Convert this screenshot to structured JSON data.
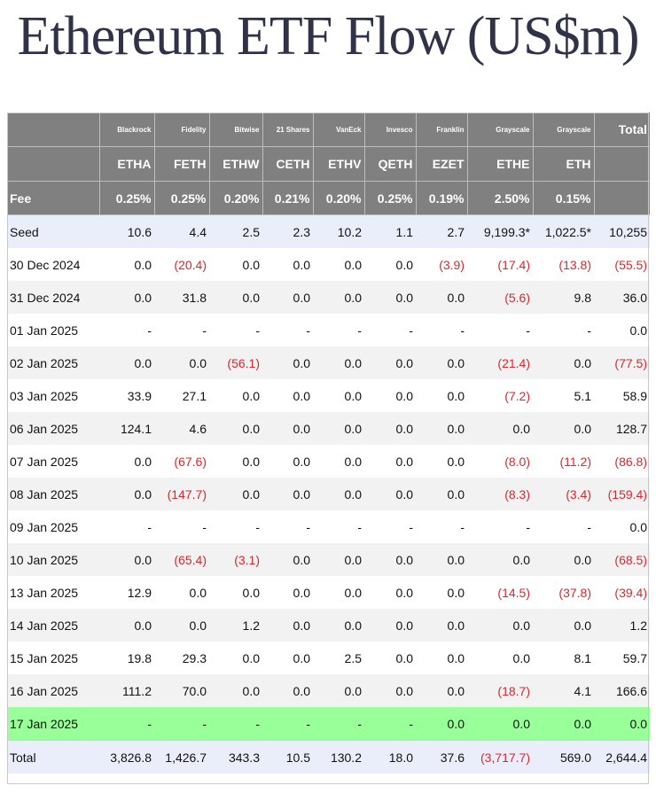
{
  "title": "Ethereum ETF Flow (US$m)",
  "issuers": [
    "Blackrock",
    "Fidelity",
    "Bitwise",
    "21 Shares",
    "VanEck",
    "Invesco",
    "Franklin",
    "Grayscale",
    "Grayscale"
  ],
  "total_header": "Total",
  "tickers": [
    "ETHA",
    "FETH",
    "ETHW",
    "CETH",
    "ETHV",
    "QETH",
    "EZET",
    "ETHE",
    "ETH"
  ],
  "fee_label": "Fee",
  "fees": [
    "0.25%",
    "0.25%",
    "0.20%",
    "0.21%",
    "0.20%",
    "0.25%",
    "0.19%",
    "2.50%",
    "0.15%"
  ],
  "rows": [
    {
      "date": "Seed",
      "values": [
        "10.6",
        "4.4",
        "2.5",
        "2.3",
        "10.2",
        "1.1",
        "2.7",
        "9,199.3*",
        "1,022.5*",
        "10,255"
      ]
    },
    {
      "date": "30 Dec 2024",
      "values": [
        "0.0",
        "(20.4)",
        "0.0",
        "0.0",
        "0.0",
        "0.0",
        "(3.9)",
        "(17.4)",
        "(13.8)",
        "(55.5)"
      ]
    },
    {
      "date": "31 Dec 2024",
      "values": [
        "0.0",
        "31.8",
        "0.0",
        "0.0",
        "0.0",
        "0.0",
        "0.0",
        "(5.6)",
        "9.8",
        "36.0"
      ]
    },
    {
      "date": "01 Jan 2025",
      "values": [
        "-",
        "-",
        "-",
        "-",
        "-",
        "-",
        "-",
        "-",
        "-",
        "0.0"
      ]
    },
    {
      "date": "02 Jan 2025",
      "values": [
        "0.0",
        "0.0",
        "(56.1)",
        "0.0",
        "0.0",
        "0.0",
        "0.0",
        "(21.4)",
        "0.0",
        "(77.5)"
      ]
    },
    {
      "date": "03 Jan 2025",
      "values": [
        "33.9",
        "27.1",
        "0.0",
        "0.0",
        "0.0",
        "0.0",
        "0.0",
        "(7.2)",
        "5.1",
        "58.9"
      ]
    },
    {
      "date": "06 Jan 2025",
      "values": [
        "124.1",
        "4.6",
        "0.0",
        "0.0",
        "0.0",
        "0.0",
        "0.0",
        "0.0",
        "0.0",
        "128.7"
      ]
    },
    {
      "date": "07 Jan 2025",
      "values": [
        "0.0",
        "(67.6)",
        "0.0",
        "0.0",
        "0.0",
        "0.0",
        "0.0",
        "(8.0)",
        "(11.2)",
        "(86.8)"
      ]
    },
    {
      "date": "08 Jan 2025",
      "values": [
        "0.0",
        "(147.7)",
        "0.0",
        "0.0",
        "0.0",
        "0.0",
        "0.0",
        "(8.3)",
        "(3.4)",
        "(159.4)"
      ]
    },
    {
      "date": "09 Jan 2025",
      "values": [
        "-",
        "-",
        "-",
        "-",
        "-",
        "-",
        "-",
        "-",
        "-",
        "0.0"
      ]
    },
    {
      "date": "10 Jan 2025",
      "values": [
        "0.0",
        "(65.4)",
        "(3.1)",
        "0.0",
        "0.0",
        "0.0",
        "0.0",
        "0.0",
        "0.0",
        "(68.5)"
      ]
    },
    {
      "date": "13 Jan 2025",
      "values": [
        "12.9",
        "0.0",
        "0.0",
        "0.0",
        "0.0",
        "0.0",
        "0.0",
        "(14.5)",
        "(37.8)",
        "(39.4)"
      ]
    },
    {
      "date": "14 Jan 2025",
      "values": [
        "0.0",
        "0.0",
        "1.2",
        "0.0",
        "0.0",
        "0.0",
        "0.0",
        "0.0",
        "0.0",
        "1.2"
      ]
    },
    {
      "date": "15 Jan 2025",
      "values": [
        "19.8",
        "29.3",
        "0.0",
        "0.0",
        "2.5",
        "0.0",
        "0.0",
        "0.0",
        "8.1",
        "59.7"
      ]
    },
    {
      "date": "16 Jan 2025",
      "values": [
        "111.2",
        "70.0",
        "0.0",
        "0.0",
        "0.0",
        "0.0",
        "0.0",
        "(18.7)",
        "4.1",
        "166.6"
      ]
    },
    {
      "date": "17 Jan 2025",
      "values": [
        "-",
        "-",
        "-",
        "-",
        "-",
        "-",
        "0.0",
        "0.0",
        "0.0",
        "0.0"
      ]
    }
  ],
  "total_row": {
    "label": "Total",
    "values": [
      "3,826.8",
      "1,426.7",
      "343.3",
      "10.5",
      "130.2",
      "18.0",
      "37.6",
      "(3,717.7)",
      "569.0",
      "2,644.4"
    ]
  },
  "colors": {
    "header_bg": "#808080",
    "negative": "#e0242a",
    "seed_row": "#eaeefa",
    "alt_row": "#f2f2f2",
    "highlight_row": "#99ff99",
    "title": "#2f3248"
  }
}
